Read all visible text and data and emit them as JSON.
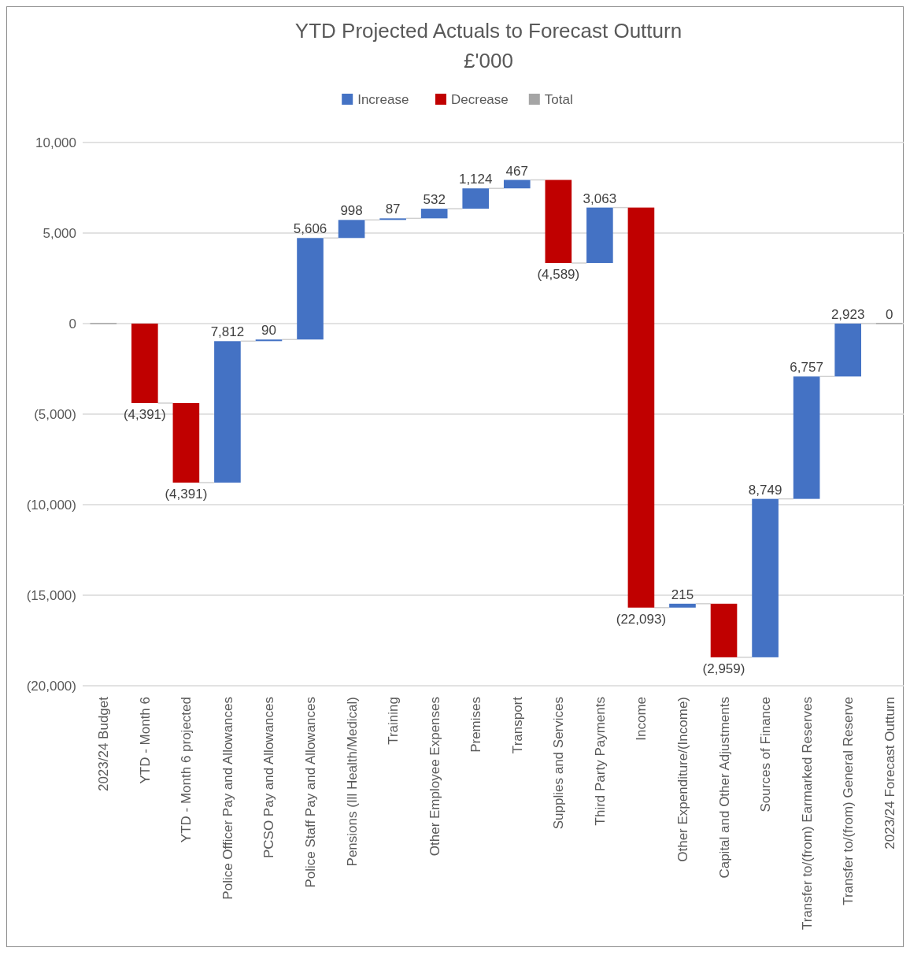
{
  "chart_data": {
    "type": "bar",
    "title": "YTD Projected Actuals to Forecast Outturn",
    "subtitle": "£'000",
    "categories": [
      "2023/24 Budget",
      "YTD - Month 6",
      "YTD - Month 6 projected",
      "Police Officer Pay and Allowances",
      "PCSO Pay and Allowances",
      "Police Staff Pay and Allowances",
      "Pensions (Ill Health/Medical)",
      "Training",
      "Other Employee Expenses",
      "Premises",
      "Transport",
      "Supplies and Services",
      "Third Party Payments",
      "Income",
      "Other Expenditure/(Income)",
      "Capital and Other Adjustments",
      "Sources of Finance",
      "Transfer to/(from) Earmarked Reserves",
      "Transfer to/(from) General Reserve",
      "2023/24 Forecast Outturn"
    ],
    "series": [
      {
        "name": "Increase",
        "color": "#4472c4",
        "base": [
          null,
          null,
          null,
          -8782,
          -970,
          -880,
          4726,
          5724,
          5811,
          6343,
          7467,
          null,
          3345,
          null,
          -15685,
          null,
          -18429,
          -9680,
          -2923,
          null
        ],
        "values": [
          null,
          null,
          null,
          7812,
          90,
          5606,
          998,
          87,
          532,
          1124,
          467,
          null,
          3063,
          null,
          215,
          null,
          8749,
          6757,
          2923,
          null
        ],
        "value_labels": [
          null,
          null,
          null,
          "7,812",
          "90",
          "5,606",
          "998",
          "87",
          "532",
          "1,124",
          "467",
          null,
          "3,063",
          null,
          "215",
          null,
          "8,749",
          "6,757",
          "2,923",
          null
        ]
      },
      {
        "name": "Decrease",
        "color": "#c00000",
        "base": [
          null,
          0,
          -4391,
          null,
          null,
          null,
          null,
          null,
          null,
          null,
          null,
          7934,
          null,
          6408,
          null,
          -15470,
          null,
          null,
          null,
          null
        ],
        "values": [
          null,
          -4391,
          -4391,
          null,
          null,
          null,
          null,
          null,
          null,
          null,
          null,
          -4589,
          null,
          -22093,
          null,
          -2959,
          null,
          null,
          null,
          null
        ],
        "value_labels": [
          null,
          "(4,391)",
          "(4,391)",
          null,
          null,
          null,
          null,
          null,
          null,
          null,
          null,
          "(4,589)",
          null,
          "(22,093)",
          null,
          "(2,959)",
          null,
          null,
          null,
          null
        ]
      },
      {
        "name": "Total",
        "color": "#a5a5a5",
        "values": [
          0,
          null,
          null,
          null,
          null,
          null,
          null,
          null,
          null,
          null,
          null,
          null,
          null,
          null,
          null,
          null,
          null,
          null,
          null,
          0
        ],
        "value_labels": [
          null,
          null,
          null,
          null,
          null,
          null,
          null,
          null,
          null,
          null,
          null,
          null,
          null,
          null,
          null,
          null,
          null,
          null,
          null,
          "0"
        ]
      }
    ],
    "ylim": [
      -20000,
      10000
    ],
    "yticks": [
      {
        "value": -20000,
        "label": "(20,000)"
      },
      {
        "value": -15000,
        "label": "(15,000)"
      },
      {
        "value": -10000,
        "label": "(10,000)"
      },
      {
        "value": -5000,
        "label": "(5,000)"
      },
      0,
      {
        "value": 5000,
        "label": "5,000"
      },
      {
        "value": 10000,
        "label": "10,000"
      }
    ],
    "grid": "y",
    "legend": "top"
  }
}
